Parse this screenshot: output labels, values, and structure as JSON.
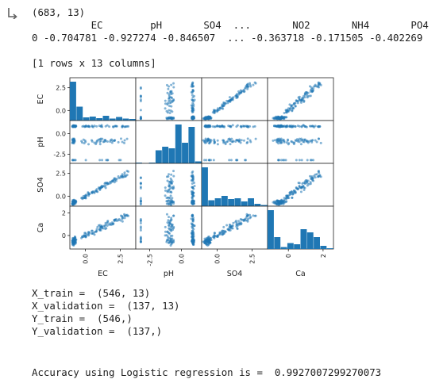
{
  "output_icon": "output-arrow-icon",
  "shape_line": "(683, 13)",
  "df_header": "          EC        pH       SO4  ...       NO2       NH4       PO4",
  "df_row": "0 -0.704781 -0.927274 -0.846507  ... -0.363718 -0.171505 -0.402269",
  "rows_cols": "[1 rows x 13 columns]",
  "split_lines": [
    "X_train =  (546, 13)",
    "X_validation =  (137, 13)",
    "Y_train =  (546,)",
    "Y_validation =  (137,)"
  ],
  "accuracy_line": "Accuracy using Logistic regression is =  0.9927007299270073",
  "chart_data": {
    "type": "scatter",
    "title": "",
    "variables": [
      "EC",
      "pH",
      "SO4",
      "Ca"
    ],
    "point_color": "#1f77b4",
    "diagonal": "histogram",
    "ranges": {
      "EC": [
        -1.1,
        3.6
      ],
      "pH": [
        -3.6,
        1.6
      ],
      "SO4": [
        -1.1,
        3.6
      ],
      "Ca": [
        -1.2,
        2.6
      ]
    },
    "tick_labels": {
      "EC": [
        "0.0",
        "2.5"
      ],
      "pH": [
        "-2.5",
        "0.0"
      ],
      "SO4": [
        "0.0",
        "2.5"
      ],
      "Ca": [
        "0",
        "2"
      ]
    },
    "tick_values": {
      "EC": [
        0,
        2.5
      ],
      "pH": [
        -2.5,
        0
      ],
      "SO4": [
        0,
        2.5
      ],
      "Ca": [
        0,
        2
      ]
    },
    "histograms": {
      "EC": [
        0.98,
        0.35,
        0.08,
        0.1,
        0.06,
        0.12,
        0.05,
        0.09,
        0.05,
        0.04
      ],
      "pH": [
        0.02,
        0.0,
        0.02,
        0.33,
        0.42,
        0.38,
        0.98,
        0.52,
        0.92,
        0.05
      ],
      "SO4": [
        0.98,
        0.15,
        0.2,
        0.26,
        0.18,
        0.2,
        0.12,
        0.2,
        0.06,
        0.03
      ],
      "Ca": [
        0.98,
        0.3,
        0.05,
        0.15,
        0.12,
        0.5,
        0.42,
        0.3,
        0.08,
        0.02
      ]
    }
  }
}
